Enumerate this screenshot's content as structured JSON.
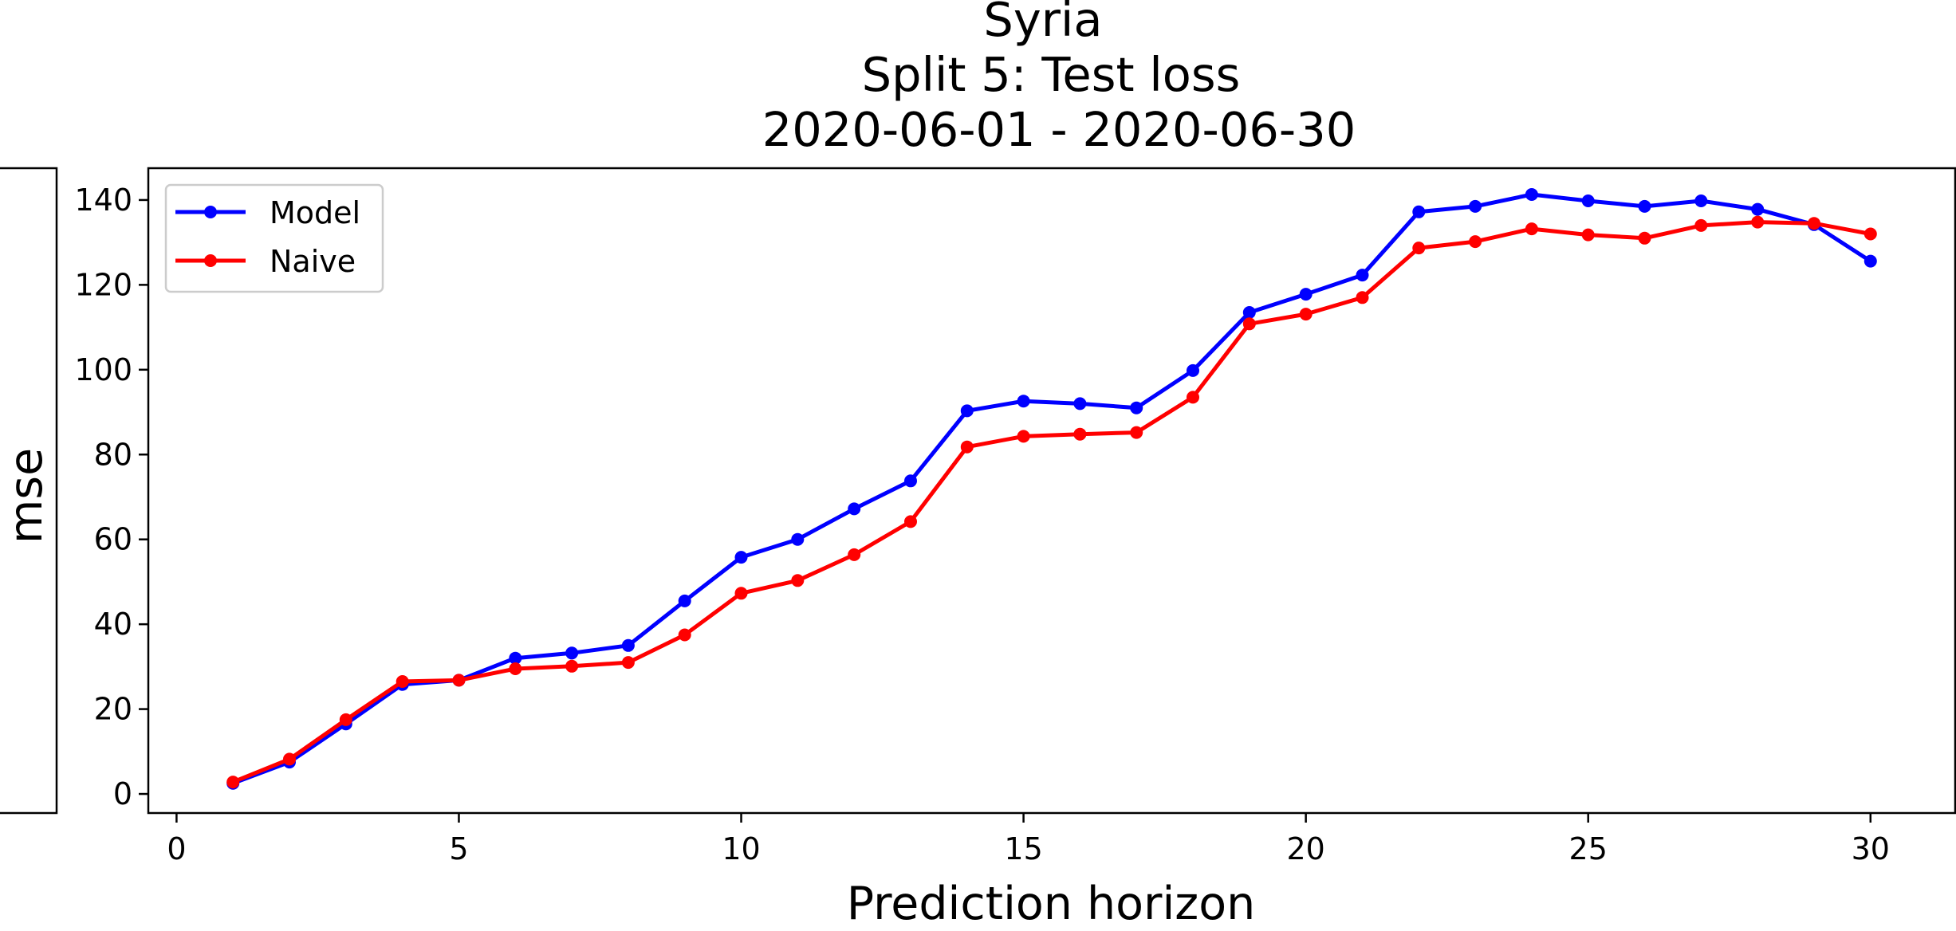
{
  "chart_data": {
    "type": "line",
    "title_lines": [
      "Syria",
      "Split 5: Test loss",
      "2020-06-01 - 2020-06-30"
    ],
    "xlabel": "Prediction horizon",
    "ylabel": "mse",
    "xlim": [
      -0.5,
      31.5
    ],
    "ylim": [
      -4.5,
      147.5
    ],
    "x_ticks": [
      0,
      5,
      10,
      15,
      20,
      25,
      30
    ],
    "y_ticks": [
      0,
      20,
      40,
      60,
      80,
      100,
      120,
      140
    ],
    "grid": false,
    "legend_position": "upper-left",
    "x": [
      1,
      2,
      3,
      4,
      5,
      6,
      7,
      8,
      9,
      10,
      11,
      12,
      13,
      14,
      15,
      16,
      17,
      18,
      19,
      20,
      21,
      22,
      23,
      24,
      25,
      26,
      27,
      28,
      29,
      30
    ],
    "series": [
      {
        "name": "Model",
        "color": "#0000ff",
        "values": [
          2.5,
          7.5,
          16.5,
          25.8,
          26.8,
          32.0,
          33.2,
          35.0,
          45.5,
          55.8,
          60.0,
          67.2,
          73.8,
          90.3,
          92.6,
          92.0,
          91.0,
          99.8,
          113.5,
          117.8,
          122.3,
          137.2,
          138.5,
          141.3,
          139.8,
          138.5,
          139.8,
          137.8,
          134.2,
          125.6
        ]
      },
      {
        "name": "Naive",
        "color": "#ff0000",
        "values": [
          2.8,
          8.2,
          17.5,
          26.5,
          26.8,
          29.5,
          30.1,
          31.0,
          37.5,
          47.3,
          50.3,
          56.4,
          64.2,
          81.8,
          84.3,
          84.8,
          85.2,
          93.5,
          110.8,
          113.1,
          117.0,
          128.7,
          130.2,
          133.2,
          131.8,
          131.0,
          134.0,
          134.8,
          134.5,
          132.0
        ]
      }
    ]
  }
}
